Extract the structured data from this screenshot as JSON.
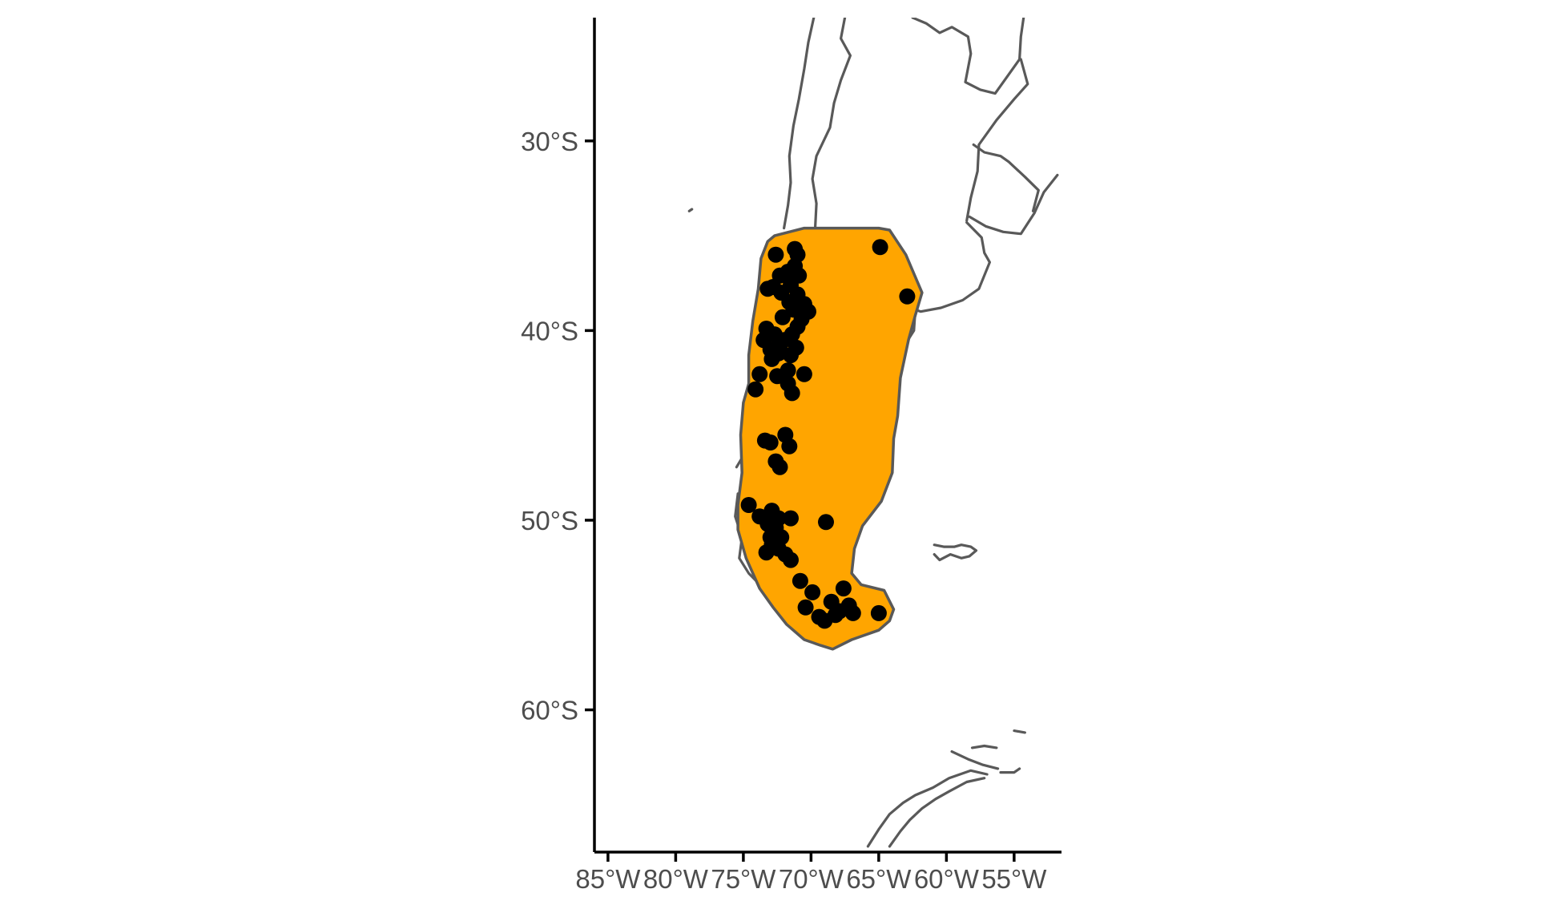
{
  "chart_data": {
    "type": "map",
    "title": "",
    "xlabel": "",
    "ylabel": "",
    "xlim": [
      -86,
      -51.5
    ],
    "ylim": [
      -67.5,
      -23.5
    ],
    "x_ticks": [
      -85,
      -80,
      -75,
      -70,
      -65,
      -60,
      -55
    ],
    "x_tick_labels": [
      "85°W",
      "80°W",
      "75°W",
      "70°W",
      "65°W",
      "60°W",
      "55°W"
    ],
    "y_ticks": [
      -30,
      -40,
      -50,
      -60
    ],
    "y_tick_labels": [
      "30°S",
      "40°S",
      "50°S",
      "60°S"
    ],
    "grid": false,
    "range_color": "#FFA500",
    "outline_color": "#595959",
    "point_color": "#000000",
    "range_polygon": [
      [
        -72.7,
        -35.0
      ],
      [
        -70.5,
        -34.6
      ],
      [
        -65.0,
        -34.6
      ],
      [
        -64.2,
        -34.7
      ],
      [
        -63.0,
        -36.0
      ],
      [
        -61.8,
        -38.0
      ],
      [
        -62.3,
        -39.2
      ],
      [
        -62.8,
        -40.5
      ],
      [
        -63.4,
        -42.5
      ],
      [
        -63.6,
        -44.5
      ],
      [
        -63.9,
        -45.7
      ],
      [
        -64.0,
        -47.5
      ],
      [
        -64.8,
        -49.0
      ],
      [
        -66.2,
        -50.3
      ],
      [
        -66.8,
        -51.5
      ],
      [
        -67.0,
        -52.8
      ],
      [
        -66.3,
        -53.4
      ],
      [
        -64.6,
        -53.7
      ],
      [
        -63.9,
        -54.7
      ],
      [
        -64.2,
        -55.3
      ],
      [
        -65.0,
        -55.8
      ],
      [
        -67.0,
        -56.3
      ],
      [
        -68.4,
        -56.8
      ],
      [
        -69.3,
        -56.6
      ],
      [
        -70.5,
        -56.3
      ],
      [
        -71.8,
        -55.5
      ],
      [
        -72.8,
        -54.6
      ],
      [
        -73.8,
        -53.6
      ],
      [
        -74.8,
        -52.0
      ],
      [
        -75.4,
        -50.5
      ],
      [
        -75.4,
        -49.2
      ],
      [
        -75.1,
        -47.5
      ],
      [
        -75.2,
        -45.5
      ],
      [
        -75.0,
        -43.8
      ],
      [
        -74.6,
        -42.8
      ],
      [
        -74.6,
        -41.3
      ],
      [
        -74.3,
        -39.5
      ],
      [
        -73.9,
        -37.8
      ],
      [
        -73.7,
        -36.2
      ],
      [
        -73.2,
        -35.3
      ]
    ],
    "occurrences": [
      [
        -64.9,
        -35.6
      ],
      [
        -62.9,
        -38.2
      ],
      [
        -72.6,
        -36.0
      ],
      [
        -71.2,
        -35.7
      ],
      [
        -71.0,
        -36.0
      ],
      [
        -71.2,
        -36.6
      ],
      [
        -71.7,
        -36.9
      ],
      [
        -70.9,
        -37.1
      ],
      [
        -72.3,
        -37.1
      ],
      [
        -71.5,
        -37.6
      ],
      [
        -73.2,
        -37.8
      ],
      [
        -72.8,
        -37.7
      ],
      [
        -72.2,
        -38.0
      ],
      [
        -71.0,
        -38.1
      ],
      [
        -71.6,
        -38.5
      ],
      [
        -70.5,
        -38.6
      ],
      [
        -71.3,
        -38.9
      ],
      [
        -70.2,
        -39.0
      ],
      [
        -72.1,
        -39.3
      ],
      [
        -70.7,
        -39.4
      ],
      [
        -71.0,
        -39.8
      ],
      [
        -73.3,
        -39.9
      ],
      [
        -72.7,
        -40.2
      ],
      [
        -71.4,
        -40.2
      ],
      [
        -73.5,
        -40.5
      ],
      [
        -72.0,
        -40.5
      ],
      [
        -72.3,
        -40.8
      ],
      [
        -71.1,
        -40.9
      ],
      [
        -73.0,
        -41.0
      ],
      [
        -72.4,
        -41.2
      ],
      [
        -71.5,
        -41.3
      ],
      [
        -72.9,
        -41.5
      ],
      [
        -71.7,
        -42.1
      ],
      [
        -73.8,
        -42.3
      ],
      [
        -72.5,
        -42.4
      ],
      [
        -70.5,
        -42.3
      ],
      [
        -71.7,
        -42.8
      ],
      [
        -71.4,
        -43.3
      ],
      [
        -74.1,
        -43.1
      ],
      [
        -71.9,
        -45.5
      ],
      [
        -73.4,
        -45.8
      ],
      [
        -73.0,
        -45.9
      ],
      [
        -71.6,
        -46.1
      ],
      [
        -72.6,
        -46.9
      ],
      [
        -72.3,
        -47.2
      ],
      [
        -74.6,
        -49.2
      ],
      [
        -72.9,
        -49.5
      ],
      [
        -73.8,
        -49.8
      ],
      [
        -72.4,
        -49.9
      ],
      [
        -71.5,
        -49.9
      ],
      [
        -73.2,
        -50.2
      ],
      [
        -72.6,
        -50.4
      ],
      [
        -68.9,
        -50.1
      ],
      [
        -73.0,
        -50.9
      ],
      [
        -72.2,
        -50.9
      ],
      [
        -72.9,
        -51.3
      ],
      [
        -72.4,
        -51.5
      ],
      [
        -73.3,
        -51.7
      ],
      [
        -71.9,
        -51.8
      ],
      [
        -71.5,
        -52.1
      ],
      [
        -70.8,
        -53.2
      ],
      [
        -69.9,
        -53.8
      ],
      [
        -67.6,
        -53.6
      ],
      [
        -70.4,
        -54.6
      ],
      [
        -68.5,
        -54.3
      ],
      [
        -67.2,
        -54.5
      ],
      [
        -67.9,
        -54.8
      ],
      [
        -69.4,
        -55.1
      ],
      [
        -68.2,
        -55.0
      ],
      [
        -66.9,
        -54.9
      ],
      [
        -69.0,
        -55.3
      ],
      [
        -65.0,
        -54.9
      ]
    ],
    "coastlines": [
      [
        [
          -69.8,
          -23.5
        ],
        [
          -70.2,
          -24.8
        ],
        [
          -70.5,
          -26.2
        ],
        [
          -70.9,
          -27.8
        ],
        [
          -71.3,
          -29.2
        ],
        [
          -71.6,
          -30.8
        ],
        [
          -71.5,
          -32.2
        ],
        [
          -71.7,
          -33.4
        ],
        [
          -72.0,
          -34.6
        ]
      ],
      [
        [
          -67.5,
          -23.5
        ],
        [
          -67.8,
          -24.6
        ],
        [
          -67.1,
          -25.5
        ],
        [
          -67.8,
          -26.8
        ],
        [
          -68.3,
          -28.0
        ],
        [
          -68.6,
          -29.3
        ],
        [
          -69.6,
          -30.8
        ],
        [
          -69.9,
          -32.0
        ],
        [
          -69.6,
          -33.3
        ],
        [
          -69.7,
          -34.7
        ]
      ],
      [
        [
          -62.5,
          -23.5
        ],
        [
          -61.5,
          -23.8
        ],
        [
          -60.5,
          -24.3
        ],
        [
          -59.6,
          -24.0
        ],
        [
          -58.4,
          -24.5
        ],
        [
          -58.2,
          -25.4
        ],
        [
          -58.6,
          -26.9
        ],
        [
          -57.5,
          -27.3
        ],
        [
          -56.4,
          -27.5
        ],
        [
          -55.6,
          -26.7
        ],
        [
          -54.6,
          -25.7
        ],
        [
          -54.5,
          -24.5
        ],
        [
          -54.3,
          -23.5
        ]
      ],
      [
        [
          -54.5,
          -25.7
        ],
        [
          -54.0,
          -27.0
        ],
        [
          -55.0,
          -27.8
        ],
        [
          -56.3,
          -28.9
        ],
        [
          -57.6,
          -30.2
        ],
        [
          -57.7,
          -31.6
        ],
        [
          -58.2,
          -33.0
        ],
        [
          -58.5,
          -34.2
        ]
      ],
      [
        [
          -58.0,
          -30.2
        ],
        [
          -57.2,
          -30.6
        ],
        [
          -56.0,
          -30.8
        ],
        [
          -55.4,
          -31.1
        ],
        [
          -54.2,
          -31.9
        ],
        [
          -53.2,
          -32.6
        ],
        [
          -53.6,
          -33.7
        ]
      ],
      [
        [
          -58.3,
          -34.0
        ],
        [
          -57.1,
          -34.5
        ],
        [
          -55.8,
          -34.8
        ],
        [
          -54.5,
          -34.9
        ],
        [
          -53.5,
          -33.8
        ],
        [
          -52.8,
          -32.7
        ],
        [
          -51.8,
          -31.8
        ]
      ],
      [
        [
          -58.5,
          -34.3
        ],
        [
          -57.4,
          -35.1
        ],
        [
          -57.2,
          -35.9
        ],
        [
          -56.8,
          -36.4
        ],
        [
          -57.6,
          -37.8
        ],
        [
          -58.8,
          -38.4
        ],
        [
          -60.4,
          -38.8
        ],
        [
          -61.9,
          -39.0
        ],
        [
          -62.3,
          -38.9
        ]
      ],
      [
        [
          -62.3,
          -38.9
        ],
        [
          -62.4,
          -40.0
        ],
        [
          -63.2,
          -40.9
        ],
        [
          -64.7,
          -40.8
        ],
        [
          -65.1,
          -41.2
        ],
        [
          -65.0,
          -42.2
        ],
        [
          -64.3,
          -42.5
        ],
        [
          -63.6,
          -42.8
        ]
      ],
      [
        [
          -78.8,
          -33.6
        ],
        [
          -79.0,
          -33.7
        ]
      ],
      [
        [
          -73.6,
          -41.8
        ],
        [
          -74.1,
          -42.5
        ],
        [
          -74.4,
          -43.3
        ],
        [
          -73.8,
          -43.6
        ]
      ],
      [
        [
          -74.0,
          -44.2
        ],
        [
          -74.6,
          -45.0
        ],
        [
          -74.2,
          -46.0
        ],
        [
          -75.0,
          -46.6
        ],
        [
          -75.5,
          -47.2
        ]
      ],
      [
        [
          -75.4,
          -48.6
        ],
        [
          -75.6,
          -49.8
        ],
        [
          -75.1,
          -50.9
        ],
        [
          -75.3,
          -52.0
        ],
        [
          -74.6,
          -52.8
        ],
        [
          -73.5,
          -53.6
        ],
        [
          -72.2,
          -54.2
        ],
        [
          -71.3,
          -54.9
        ],
        [
          -70.2,
          -55.3
        ],
        [
          -68.4,
          -55.6
        ],
        [
          -67.2,
          -55.8
        ],
        [
          -66.0,
          -55.0
        ],
        [
          -64.6,
          -54.8
        ]
      ],
      [
        [
          -60.9,
          -51.3
        ],
        [
          -60.2,
          -51.4
        ],
        [
          -59.4,
          -51.4
        ],
        [
          -58.9,
          -51.3
        ],
        [
          -58.2,
          -51.4
        ],
        [
          -57.8,
          -51.6
        ],
        [
          -58.3,
          -51.9
        ],
        [
          -58.9,
          -52.0
        ],
        [
          -59.7,
          -51.8
        ],
        [
          -60.5,
          -52.1
        ],
        [
          -60.9,
          -51.8
        ]
      ],
      [
        [
          -58.1,
          -62.0
        ],
        [
          -57.2,
          -61.9
        ],
        [
          -56.3,
          -62.0
        ]
      ],
      [
        [
          -57.0,
          -63.4
        ],
        [
          -58.2,
          -63.2
        ],
        [
          -59.8,
          -63.6
        ],
        [
          -61.0,
          -64.1
        ],
        [
          -62.3,
          -64.5
        ],
        [
          -63.2,
          -64.9
        ],
        [
          -64.2,
          -65.5
        ],
        [
          -65.0,
          -66.3
        ],
        [
          -65.8,
          -67.2
        ]
      ],
      [
        [
          -57.2,
          -63.6
        ],
        [
          -58.5,
          -63.8
        ],
        [
          -59.8,
          -64.3
        ],
        [
          -60.8,
          -64.7
        ],
        [
          -61.8,
          -65.2
        ],
        [
          -62.7,
          -65.8
        ],
        [
          -63.4,
          -66.4
        ],
        [
          -64.2,
          -67.2
        ]
      ],
      [
        [
          -59.6,
          -62.2
        ],
        [
          -58.4,
          -62.6
        ],
        [
          -57.3,
          -62.9
        ],
        [
          -56.2,
          -63.1
        ]
      ],
      [
        [
          -55.0,
          -61.1
        ],
        [
          -54.2,
          -61.2
        ]
      ],
      [
        [
          -56.0,
          -63.3
        ],
        [
          -55.0,
          -63.3
        ],
        [
          -54.6,
          -63.1
        ]
      ]
    ]
  }
}
